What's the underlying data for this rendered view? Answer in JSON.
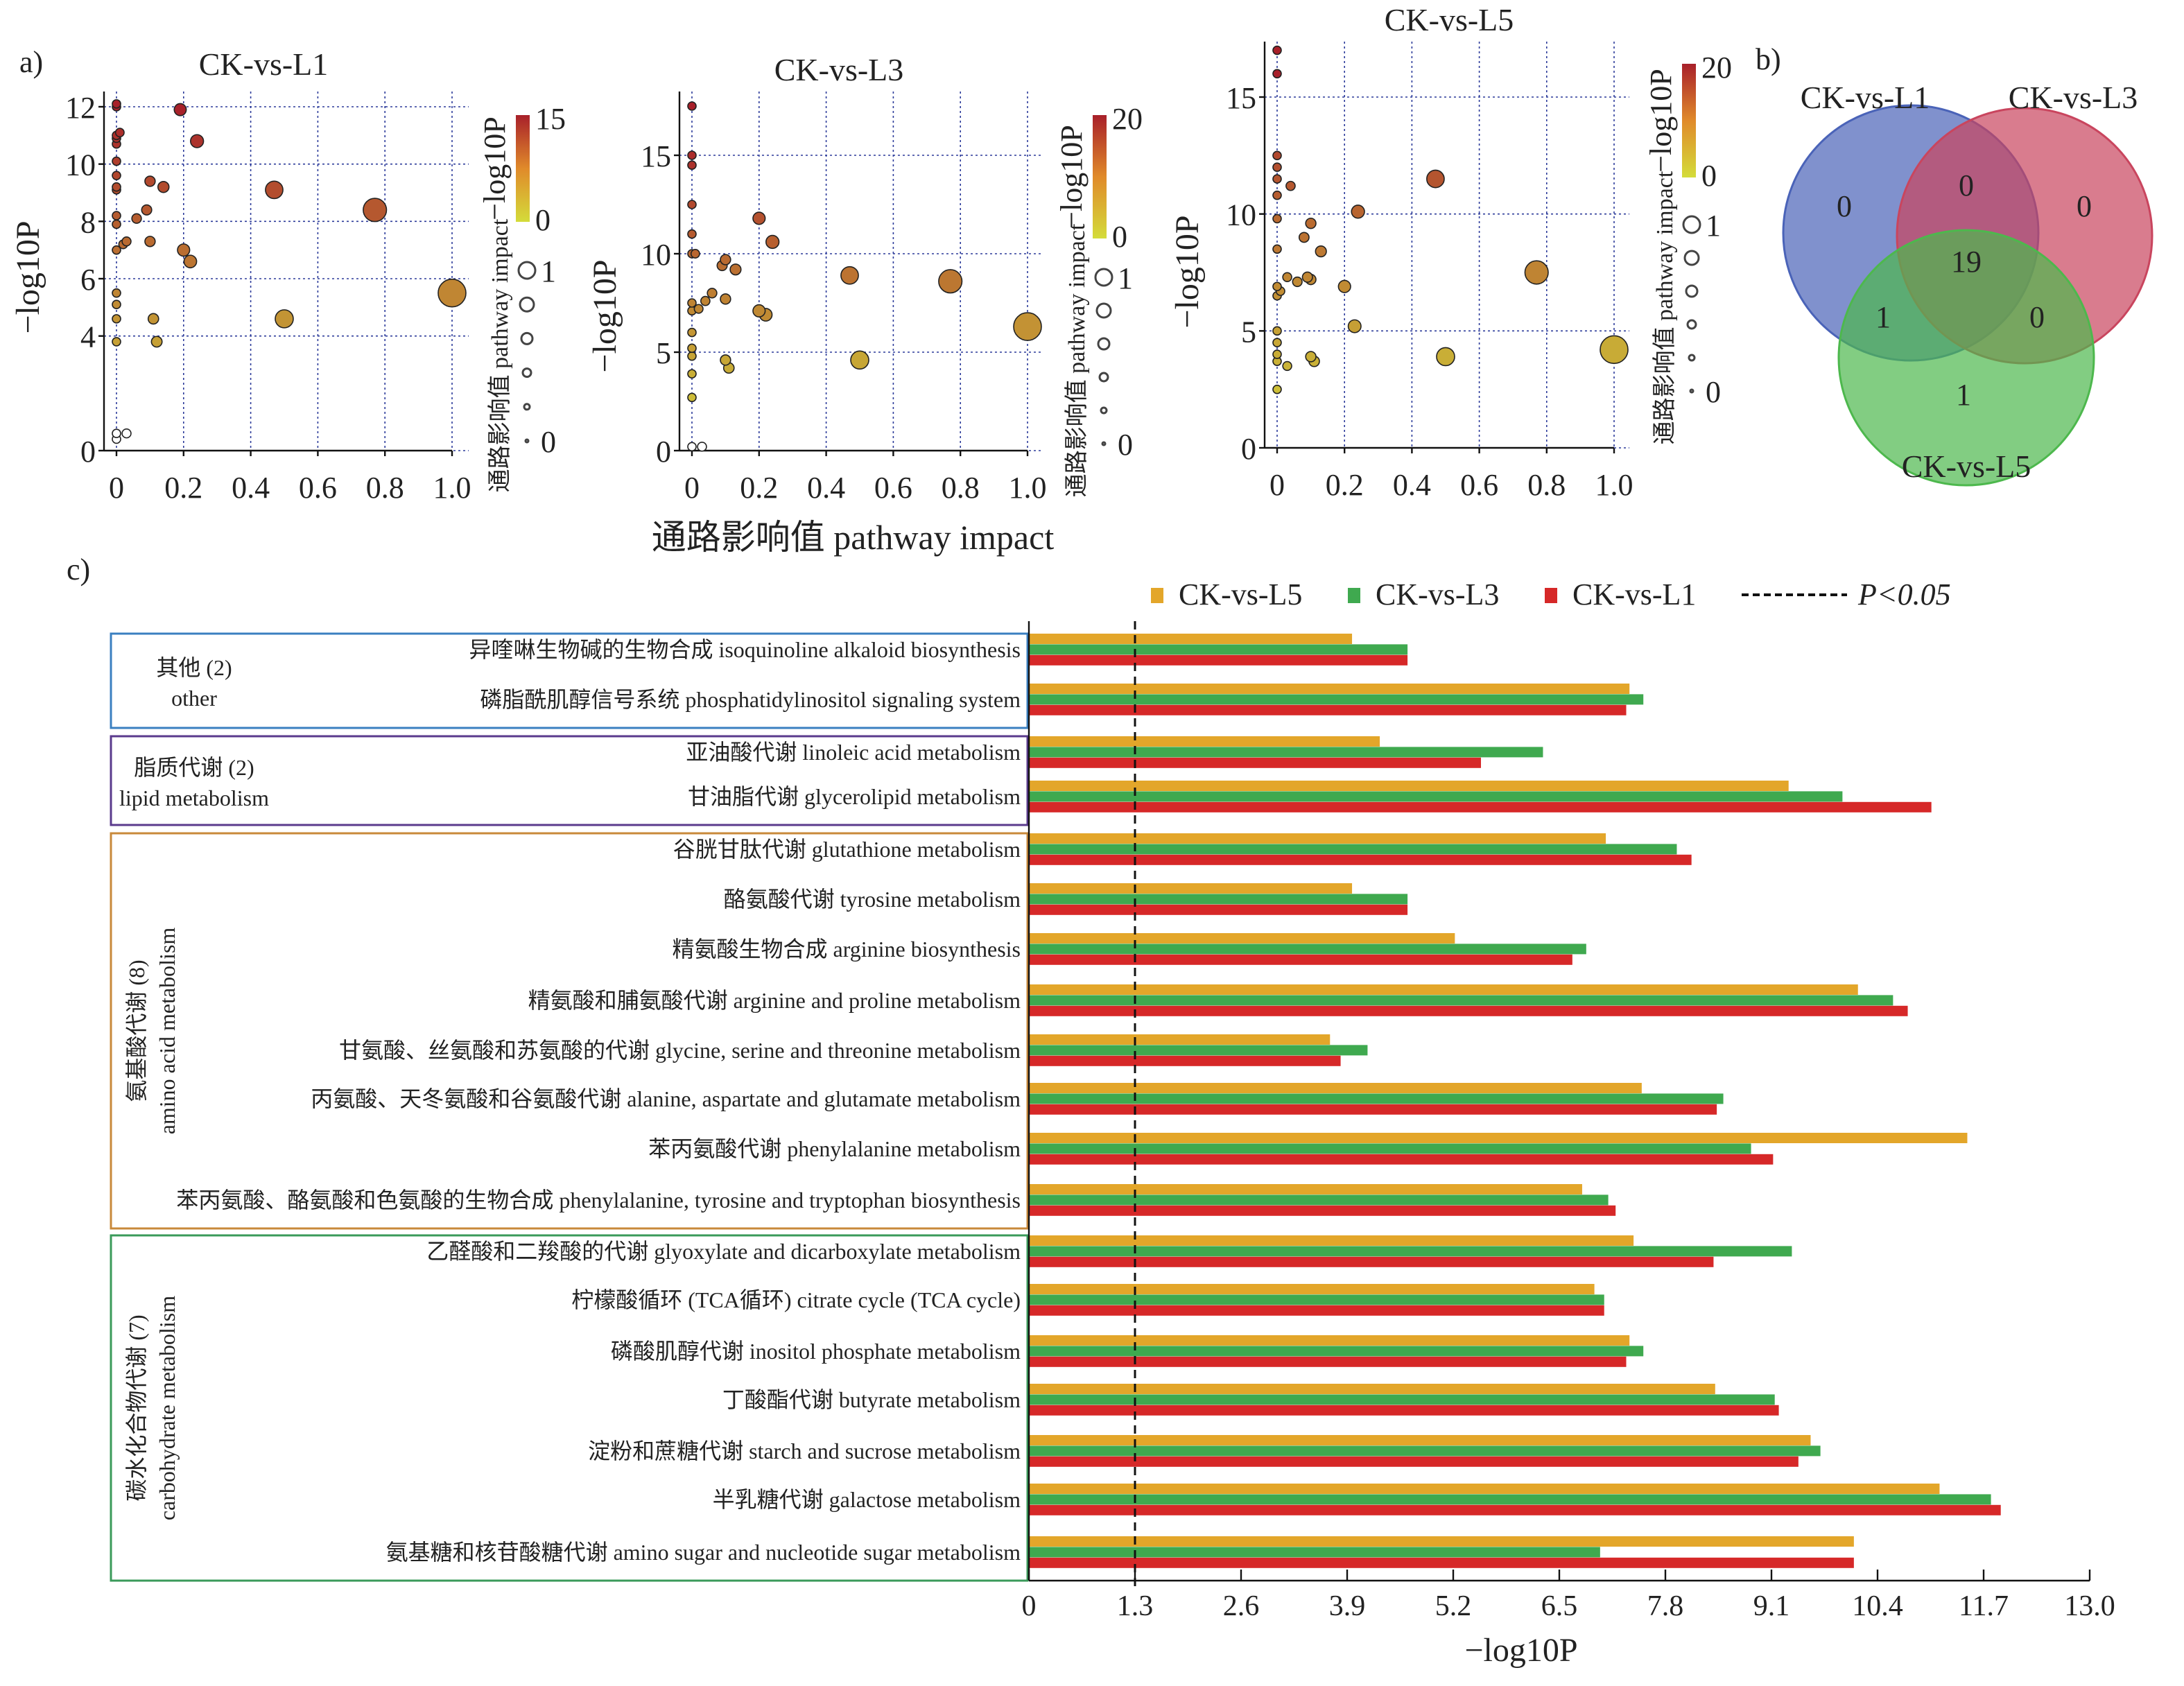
{
  "panel_labels": {
    "a": "a)",
    "b": "b)",
    "c": "c)"
  },
  "chart_data": [
    {
      "type": "scatter",
      "title": "CK-vs-L1",
      "xlabel": "通路影响值 pathway impact",
      "ylabel": "−log10P",
      "xlim": [
        0,
        1.0
      ],
      "ylim": [
        0,
        12.5
      ],
      "xticks": [
        "0",
        "0.2",
        "0.4",
        "0.6",
        "0.8",
        "1.0"
      ],
      "yticks": [
        "0",
        "4",
        "6",
        "8",
        "10",
        "12"
      ],
      "grid": true,
      "color_legend": {
        "title": "−log10P",
        "min": "0",
        "max": "15",
        "low_color": "#d4dc3a",
        "high_color": "#a8202a"
      },
      "size_legend": {
        "title": "通路影响值 pathway impact",
        "min": "0",
        "max": "1"
      },
      "points": [
        [
          0,
          12.1
        ],
        [
          0,
          12.0
        ],
        [
          0.19,
          11.9
        ],
        [
          0,
          11.0
        ],
        [
          0.01,
          11.1
        ],
        [
          0,
          10.9
        ],
        [
          0.24,
          10.8
        ],
        [
          0,
          10.7
        ],
        [
          0,
          10.1
        ],
        [
          0,
          9.6
        ],
        [
          0.1,
          9.4
        ],
        [
          0,
          9.2
        ],
        [
          0,
          9.1
        ],
        [
          0.14,
          9.2
        ],
        [
          0.47,
          9.1
        ],
        [
          0.77,
          8.4
        ],
        [
          0.09,
          8.4
        ],
        [
          0,
          8.2
        ],
        [
          0.06,
          8.1
        ],
        [
          0,
          7.9
        ],
        [
          0.03,
          7.3
        ],
        [
          0.02,
          7.2
        ],
        [
          0.1,
          7.3
        ],
        [
          0,
          7.0
        ],
        [
          0.2,
          7.0
        ],
        [
          0.22,
          6.6
        ],
        [
          1.0,
          5.5
        ],
        [
          0,
          5.5
        ],
        [
          0,
          5.1
        ],
        [
          0,
          4.6
        ],
        [
          0.11,
          4.6
        ],
        [
          0.5,
          4.6
        ],
        [
          0,
          3.8
        ],
        [
          0.12,
          3.8
        ],
        [
          0,
          0.6
        ],
        [
          0.03,
          0.6
        ],
        [
          0,
          0.4
        ]
      ]
    },
    {
      "type": "scatter",
      "title": "CK-vs-L3",
      "xlabel": "通路影响值 pathway impact",
      "ylabel": "−log10P",
      "xlim": [
        0,
        1.0
      ],
      "ylim": [
        0,
        17.5
      ],
      "xticks": [
        "0",
        "0.2",
        "0.4",
        "0.6",
        "0.8",
        "1.0"
      ],
      "yticks": [
        "0",
        "5",
        "10",
        "15"
      ],
      "grid": true,
      "color_legend": {
        "title": "−log10P",
        "min": "0",
        "max": "20",
        "low_color": "#d4dc3a",
        "high_color": "#a8202a"
      },
      "size_legend": {
        "title": "通路影响值 pathway impact",
        "min": "0",
        "max": "1"
      },
      "points": [
        [
          0,
          17.5
        ],
        [
          0,
          15
        ],
        [
          0,
          14.5
        ],
        [
          0,
          12.5
        ],
        [
          0,
          11
        ],
        [
          0,
          10
        ],
        [
          0.01,
          10
        ],
        [
          0.2,
          11.8
        ],
        [
          0.24,
          10.6
        ],
        [
          0.1,
          9.7
        ],
        [
          0.09,
          9.4
        ],
        [
          0.13,
          9.2
        ],
        [
          0.47,
          8.9
        ],
        [
          0.77,
          8.6
        ],
        [
          0.06,
          8
        ],
        [
          0.04,
          7.6
        ],
        [
          0.1,
          7.7
        ],
        [
          0,
          7.5
        ],
        [
          0,
          7.1
        ],
        [
          0.02,
          7.2
        ],
        [
          0.2,
          7.1
        ],
        [
          0.22,
          6.9
        ],
        [
          1.0,
          6.3
        ],
        [
          0,
          6
        ],
        [
          0,
          5.2
        ],
        [
          0,
          4.8
        ],
        [
          0.5,
          4.6
        ],
        [
          0.1,
          4.6
        ],
        [
          0.11,
          4.2
        ],
        [
          0,
          3.9
        ],
        [
          0,
          2.7
        ],
        [
          0,
          0.2
        ],
        [
          0.03,
          0.2
        ]
      ]
    },
    {
      "type": "scatter",
      "title": "CK-vs-L5",
      "xlabel": "通路影响值 pathway impact",
      "ylabel": "−log10P",
      "xlim": [
        0,
        1.0
      ],
      "ylim": [
        0,
        17
      ],
      "xticks": [
        "0",
        "0.2",
        "0.4",
        "0.6",
        "0.8",
        "1.0"
      ],
      "yticks": [
        "0",
        "5",
        "10",
        "15"
      ],
      "grid": true,
      "color_legend": {
        "title": "−log10P",
        "min": "0",
        "max": "20",
        "low_color": "#d4dc3a",
        "high_color": "#a8202a"
      },
      "size_legend": {
        "title": "通路影响值 pathway impact",
        "min": "0",
        "max": "1"
      },
      "points": [
        [
          0,
          17
        ],
        [
          0,
          16
        ],
        [
          0,
          12.5
        ],
        [
          0,
          12
        ],
        [
          0,
          11.5
        ],
        [
          0.04,
          11.2
        ],
        [
          0,
          10.8
        ],
        [
          0.47,
          11.5
        ],
        [
          0.24,
          10.1
        ],
        [
          0,
          9.8
        ],
        [
          0.1,
          9.6
        ],
        [
          0.08,
          9
        ],
        [
          0,
          8.5
        ],
        [
          0.13,
          8.4
        ],
        [
          0.77,
          7.5
        ],
        [
          0.03,
          7.3
        ],
        [
          0.06,
          7.1
        ],
        [
          0.09,
          7.3
        ],
        [
          0.1,
          7.2
        ],
        [
          0.2,
          6.9
        ],
        [
          0,
          6.9
        ],
        [
          0.01,
          6.7
        ],
        [
          0,
          6.5
        ],
        [
          0.23,
          5.2
        ],
        [
          0,
          5
        ],
        [
          0,
          4.5
        ],
        [
          0,
          4
        ],
        [
          0.5,
          3.9
        ],
        [
          1.0,
          4.2
        ],
        [
          0.1,
          3.9
        ],
        [
          0.11,
          3.7
        ],
        [
          0.03,
          3.5
        ],
        [
          0,
          3.7
        ],
        [
          0,
          2.5
        ]
      ]
    },
    {
      "type": "venn",
      "sets": [
        {
          "name": "CK-vs-L1",
          "color": "#4a63b8"
        },
        {
          "name": "CK-vs-L3",
          "color": "#c9455e"
        },
        {
          "name": "CK-vs-L5",
          "color": "#4db84d"
        }
      ],
      "regions": {
        "L1_only": "0",
        "L3_only": "0",
        "L5_only": "1",
        "L1_L3": "0",
        "L1_L5": "1",
        "L3_L5": "0",
        "all": "19"
      }
    },
    {
      "type": "bar",
      "orientation": "horizontal",
      "xlabel": "−log10P",
      "xlim": [
        0,
        13.0
      ],
      "xticks": [
        "0",
        "1.3",
        "2.6",
        "3.9",
        "5.2",
        "6.5",
        "7.8",
        "9.1",
        "10.4",
        "11.7",
        "13.0"
      ],
      "threshold": {
        "value": 1.3,
        "label": "P<0.05"
      },
      "legend_position": "top",
      "series": [
        {
          "name": "CK-vs-L5",
          "color": "#e3a62a",
          "values": [
            3.96,
            7.36,
            4.3,
            9.31,
            7.07,
            3.96,
            5.22,
            10.16,
            3.69,
            7.51,
            11.5,
            6.78,
            7.41,
            6.93,
            7.36,
            8.41,
            9.58,
            11.16,
            10.11
          ]
        },
        {
          "name": "CK-vs-L3",
          "color": "#3fa94f",
          "values": [
            4.64,
            7.53,
            6.3,
            9.97,
            7.94,
            4.64,
            6.83,
            10.59,
            4.15,
            8.51,
            8.85,
            7.1,
            9.35,
            7.05,
            7.53,
            9.14,
            9.7,
            11.79,
            7.0
          ]
        },
        {
          "name": "CK-vs-L1",
          "color": "#d62828",
          "values": [
            4.64,
            7.32,
            5.54,
            11.06,
            8.12,
            4.64,
            6.66,
            10.77,
            3.82,
            8.43,
            9.12,
            7.19,
            8.39,
            7.05,
            7.32,
            9.19,
            9.43,
            11.91,
            10.11
          ]
        }
      ],
      "categories": [
        "异喹啉生物碱的生物合成 isoquinoline alkaloid biosynthesis",
        "磷脂酰肌醇信号系统 phosphatidylinositol signaling system",
        "亚油酸代谢 linoleic acid metabolism",
        "甘油脂代谢 glycerolipid metabolism",
        "谷胱甘肽代谢 glutathione metabolism",
        "酪氨酸代谢 tyrosine metabolism",
        "精氨酸生物合成 arginine biosynthesis",
        "精氨酸和脯氨酸代谢 arginine and proline metabolism",
        "甘氨酸、丝氨酸和苏氨酸的代谢  glycine, serine and threonine metabolism",
        "丙氨酸、天冬氨酸和谷氨酸代谢 alanine, aspartate and glutamate metabolism",
        "苯丙氨酸代谢 phenylalanine metabolism",
        "苯丙氨酸、酪氨酸和色氨酸的生物合成 phenylalanine, tyrosine and tryptophan biosynthesis",
        "乙醛酸和二羧酸的代谢 glyoxylate and dicarboxylate metabolism",
        "柠檬酸循环 (TCA循环) citrate cycle (TCA cycle)",
        "磷酸肌醇代谢 inositol phosphate metabolism",
        "丁酸酯代谢 butyrate metabolism",
        "淀粉和蔗糖代谢 starch and sucrose metabolism",
        "半乳糖代谢 galactose metabolism",
        "氨基糖和核苷酸糖代谢 amino sugar and nucleotide sugar metabolism"
      ],
      "groups": [
        {
          "zh": "其他 (2)",
          "en": "other",
          "color": "#3a7fc0",
          "rows": [
            0,
            1
          ]
        },
        {
          "zh": "脂质代谢 (2)",
          "en": "lipid metabolism",
          "color": "#5a3a8c",
          "rows": [
            2,
            3
          ]
        },
        {
          "zh": "氨基酸代谢 (8)",
          "en": "amino acid metabolism",
          "color": "#c8893a",
          "rows": [
            4,
            11
          ]
        },
        {
          "zh": "碳水化合物代谢 (7)",
          "en": "carbohydrate metabolism",
          "color": "#3a9a5a",
          "rows": [
            12,
            18
          ]
        }
      ]
    }
  ]
}
